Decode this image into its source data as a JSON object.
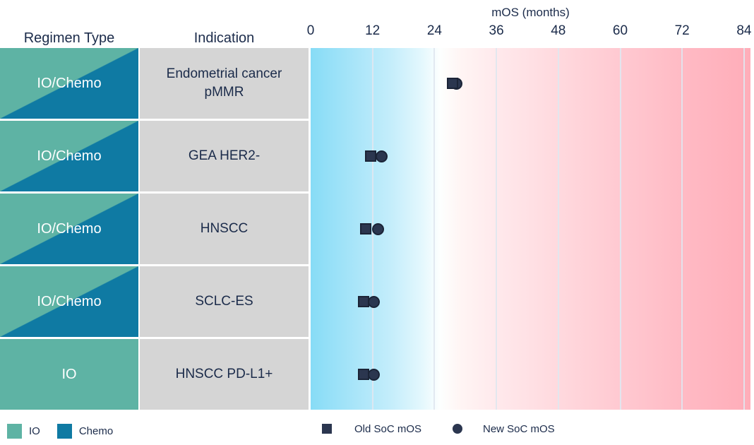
{
  "header": {
    "regimen_type": "Regimen Type",
    "indication": "Indication"
  },
  "table": {
    "headers": [
      "Regimen Type",
      "Indication"
    ],
    "rows": [
      {
        "regimen": "IO/Chemo",
        "regimen_style": "split",
        "indication": "Endometrial cancer pMMR",
        "old_soc_mos": 27.5,
        "new_soc_mos": 28.3,
        "square_in_front": true
      },
      {
        "regimen": "IO/Chemo",
        "regimen_style": "split",
        "indication": "GEA HER2-",
        "old_soc_mos": 11.6,
        "new_soc_mos": 13.8,
        "square_in_front": false
      },
      {
        "regimen": "IO/Chemo",
        "regimen_style": "split",
        "indication": "HNSCC",
        "old_soc_mos": 10.7,
        "new_soc_mos": 13.0,
        "square_in_front": false
      },
      {
        "regimen": "IO/Chemo",
        "regimen_style": "split",
        "indication": "SCLC-ES",
        "old_soc_mos": 10.3,
        "new_soc_mos": 12.3,
        "square_in_front": false
      },
      {
        "regimen": "IO",
        "regimen_style": "solid",
        "indication": "HNSCC PD-L1+",
        "old_soc_mos": 10.3,
        "new_soc_mos": 12.3,
        "square_in_front": false
      }
    ]
  },
  "chart_data": {
    "type": "scatter",
    "x_axis_title": "mOS (months)",
    "x_ticks": [
      0,
      12,
      24,
      36,
      48,
      60,
      72,
      84
    ],
    "x_range": [
      0,
      85.3
    ],
    "categories": [
      "Endometrial cancer pMMR",
      "GEA HER2-",
      "HNSCC",
      "SCLC-ES",
      "HNSCC PD-L1+"
    ],
    "series": [
      {
        "name": "Old SoC mOS",
        "marker": "square",
        "values": [
          27.5,
          11.6,
          10.7,
          10.3,
          10.3
        ]
      },
      {
        "name": "New SoC mOS",
        "marker": "circle",
        "values": [
          28.3,
          13.8,
          13.0,
          12.3,
          12.3
        ]
      }
    ],
    "gridlines": "vertical every 12 months",
    "background_gradient": {
      "left": "#87dcf6",
      "middle": "#ffffff",
      "right": "#ffadb9"
    }
  },
  "legend": {
    "io_label": "IO",
    "chemo_label": "Chemo",
    "old_soc_label": "Old SoC mOS",
    "new_soc_label": "New SoC mOS"
  },
  "colors": {
    "io": "#5eb3a4",
    "chemo": "#0f7aa3",
    "indication_bg": "#d5d5d5",
    "marker": "#2b364f",
    "text": "#1b2b4a",
    "gradient_left": "#87dcf6",
    "gradient_right": "#ffadb9"
  }
}
